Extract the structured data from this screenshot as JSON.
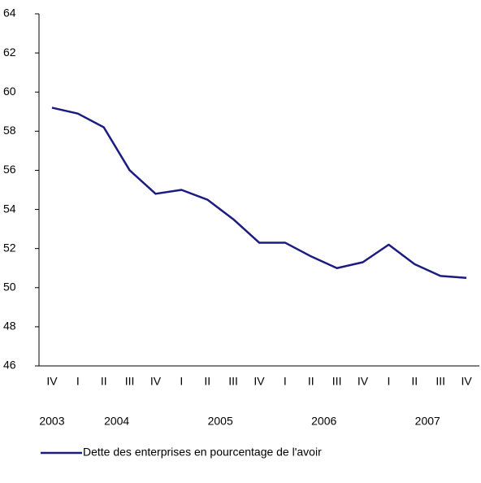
{
  "chart_data": {
    "type": "line",
    "categories": [
      "IV",
      "I",
      "II",
      "III",
      "IV",
      "I",
      "II",
      "III",
      "IV",
      "I",
      "II",
      "III",
      "IV",
      "I",
      "II",
      "III",
      "IV"
    ],
    "years": [
      "2003",
      "2004",
      "2005",
      "2006",
      "2007"
    ],
    "series": [
      {
        "name": "Dette des enterprises en pourcentage de l'avoir",
        "color": "#1c1c80",
        "values": [
          59.2,
          58.9,
          58.2,
          56.0,
          54.8,
          55.0,
          54.5,
          53.5,
          52.3,
          52.3,
          51.6,
          51.0,
          51.3,
          52.2,
          51.2,
          50.6,
          50.5
        ]
      }
    ],
    "ylim": [
      46,
      64
    ],
    "yticks": [
      46,
      48,
      50,
      52,
      54,
      56,
      58,
      60,
      62,
      64
    ],
    "grid": false,
    "legend": "bottom"
  }
}
